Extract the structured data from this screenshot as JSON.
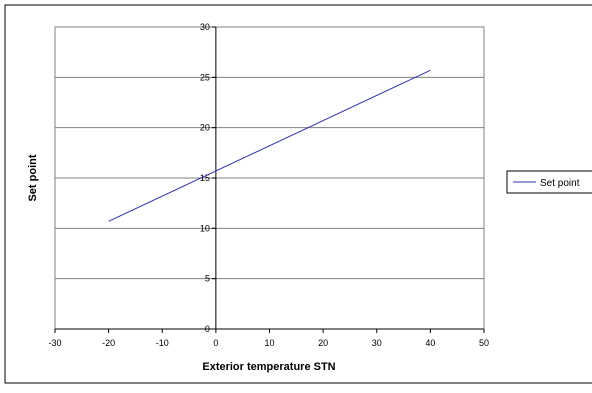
{
  "chart_data": {
    "type": "line",
    "title": "",
    "xlabel": "Exterior temperature STN",
    "ylabel": "Set point",
    "xlim": [
      -30,
      50
    ],
    "ylim": [
      0,
      30
    ],
    "x_ticks": [
      -30,
      -20,
      -10,
      0,
      10,
      20,
      30,
      40,
      50
    ],
    "y_ticks": [
      0,
      5,
      10,
      15,
      20,
      25,
      30
    ],
    "grid": "horizontal major gridlines",
    "legend": "right",
    "series": [
      {
        "name": "Set point",
        "color": "#3333aa",
        "x": [
          -20,
          40
        ],
        "y": [
          10.7,
          25.7
        ]
      }
    ]
  }
}
